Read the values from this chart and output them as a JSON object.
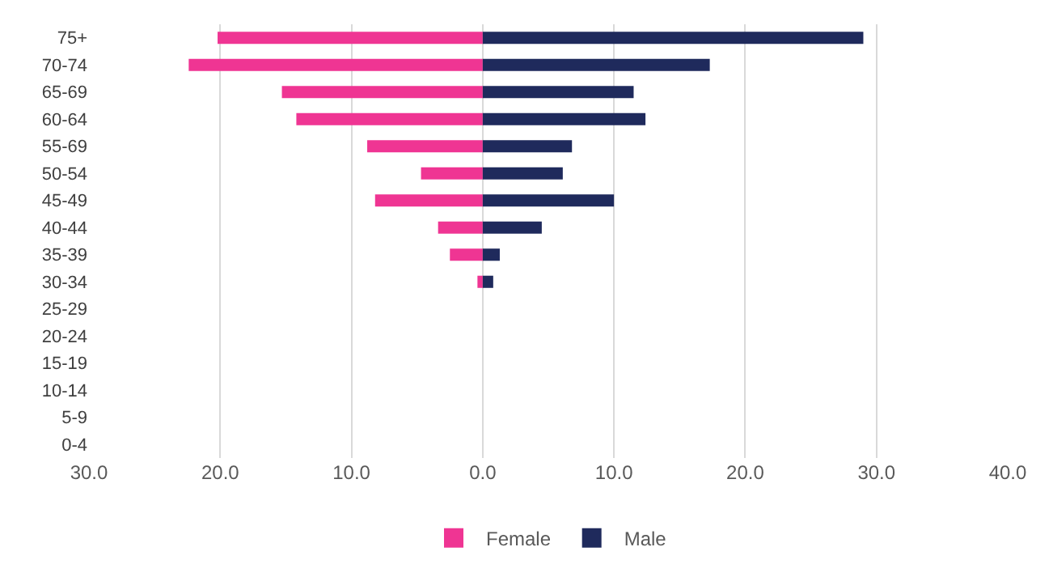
{
  "chart_data": {
    "type": "bar",
    "orientation": "horizontal",
    "stacked": true,
    "categories": [
      "75+",
      "70-74",
      "65-69",
      "60-64",
      "55-69",
      "50-54",
      "45-49",
      "40-44",
      "35-39",
      "30-34",
      "25-29",
      "20-24",
      "15-19",
      "10-14",
      "5-9",
      "0-4"
    ],
    "series": [
      {
        "name": "Female",
        "color": "#ef3593",
        "values": [
          -20.2,
          -22.4,
          -15.3,
          -14.2,
          -8.8,
          -4.7,
          -8.2,
          -3.4,
          -2.5,
          -0.4,
          null,
          null,
          null,
          null,
          null,
          null
        ]
      },
      {
        "name": "Male",
        "color": "#1f2a5c",
        "values": [
          29.0,
          17.3,
          11.5,
          12.4,
          6.8,
          6.1,
          10.0,
          4.5,
          1.3,
          0.8,
          null,
          null,
          null,
          null,
          null,
          null
        ]
      }
    ],
    "xlim": [
      -30,
      40
    ],
    "xticks": [
      {
        "value": -30,
        "label": "30.0"
      },
      {
        "value": -20,
        "label": "20.0"
      },
      {
        "value": -10,
        "label": "10.0"
      },
      {
        "value": 0,
        "label": "0.0"
      },
      {
        "value": 10,
        "label": "10.0"
      },
      {
        "value": 20,
        "label": "20.0"
      },
      {
        "value": 30,
        "label": "30.0"
      },
      {
        "value": 40,
        "label": "40.0"
      }
    ],
    "grid": "x",
    "legend": "bottom"
  }
}
